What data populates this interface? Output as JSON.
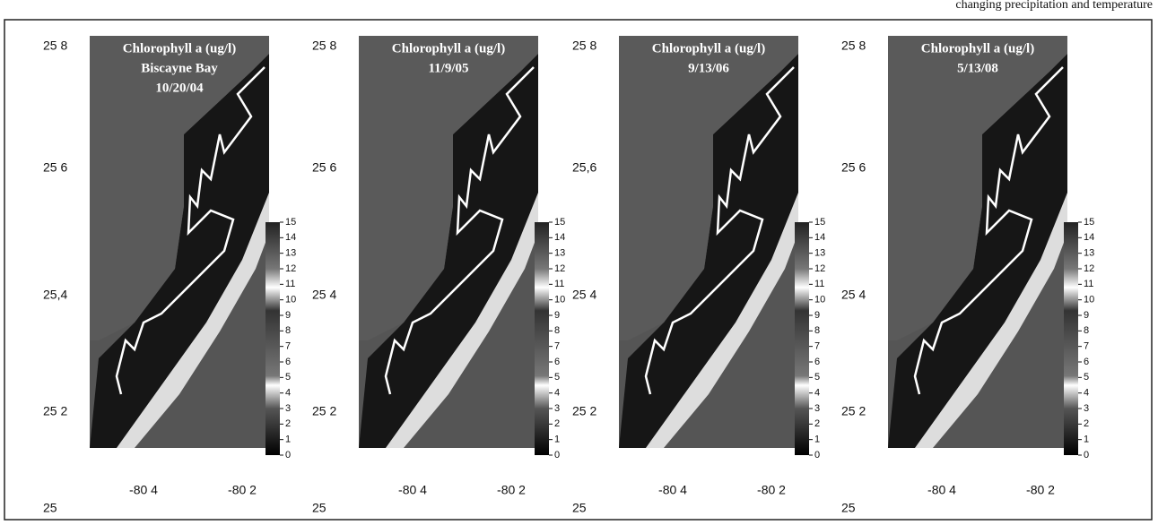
{
  "caption_fragment": "changing precipitation and temperature",
  "colorbar": {
    "lim": [
      0,
      15
    ],
    "ticks": [
      15,
      14,
      13,
      12,
      11,
      10,
      9,
      8,
      7,
      6,
      5,
      4,
      3,
      2,
      1,
      0
    ]
  },
  "panels": [
    {
      "title": [
        "Chlorophyll a (ug/l)",
        "Biscayne Bay",
        "10/20/04"
      ],
      "lat_labels": [
        "25 8",
        "25 6",
        "25,4",
        "25 2",
        "25"
      ],
      "lon_labels": [
        "-80 4",
        "-80 2"
      ]
    },
    {
      "title": [
        "Chlorophyll a (ug/l)",
        "11/9/05"
      ],
      "lat_labels": [
        "25 8",
        "25 6",
        "25 4",
        "25 2",
        "25"
      ],
      "lon_labels": [
        "-80 4",
        "-80 2"
      ]
    },
    {
      "title": [
        "Chlorophyll a (ug/l)",
        "9/13/06"
      ],
      "lat_labels": [
        "25 8",
        "25,6",
        "25 4",
        "25 2",
        "25"
      ],
      "lon_labels": [
        "-80 4",
        "-80 2"
      ]
    },
    {
      "title": [
        "Chlorophyll a (ug/l)",
        "5/13/08"
      ],
      "lat_labels": [
        "25 8",
        "25 6",
        "25 4",
        "25 2",
        "25"
      ],
      "lon_labels": [
        "-80 4",
        "-80 2"
      ]
    }
  ]
}
